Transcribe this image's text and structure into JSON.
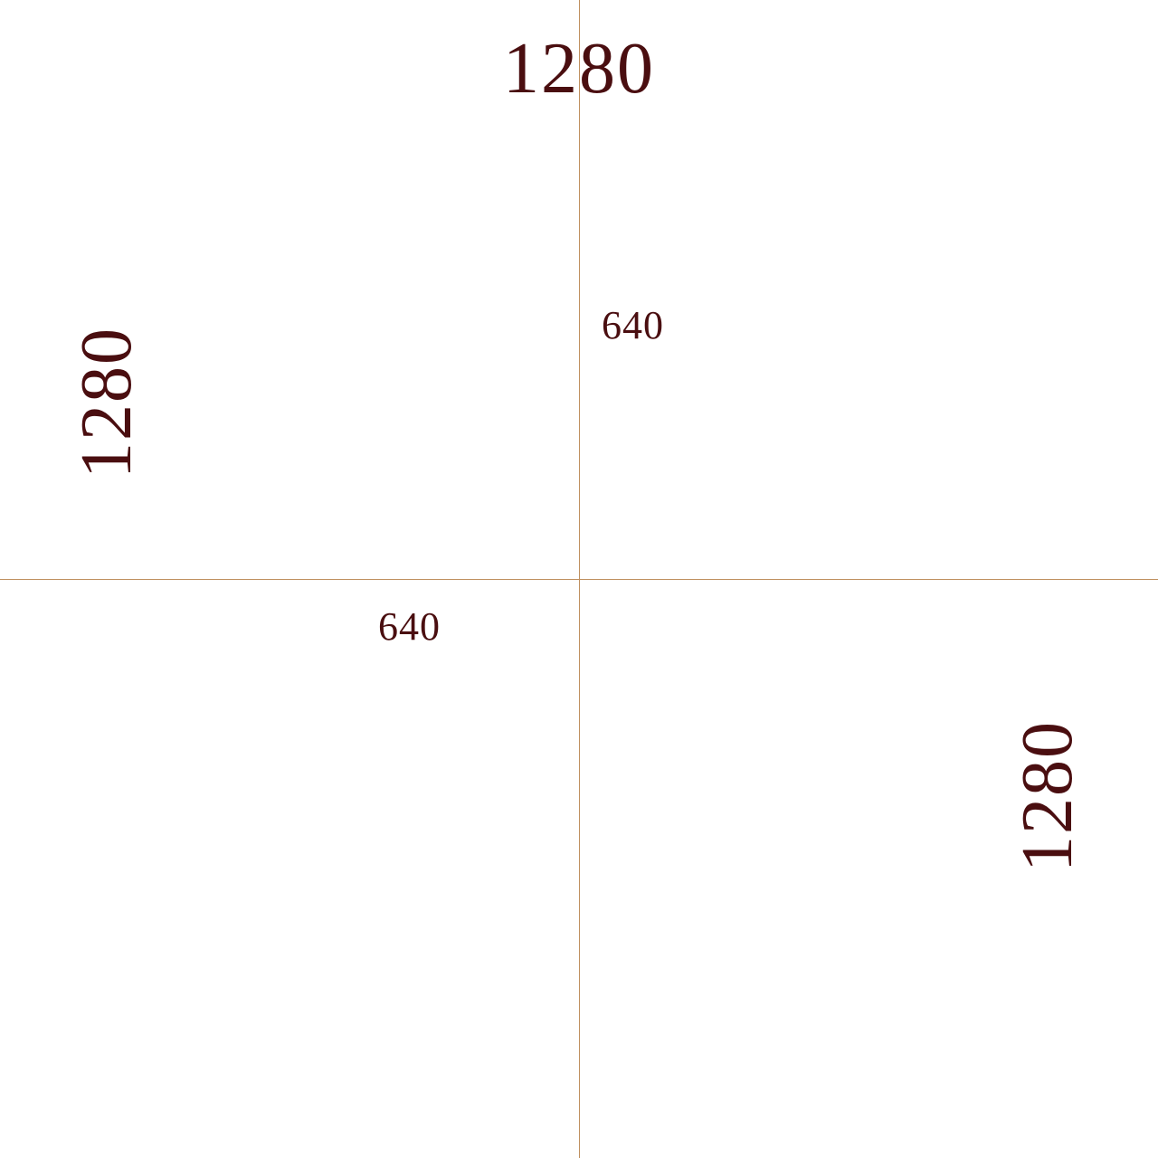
{
  "dimensions": {
    "top_width_label": "1280",
    "left_height_label": "1280",
    "right_height_label": "1280",
    "upper_half_label": "640",
    "lower_half_label": "640"
  },
  "colors": {
    "text": "#4a0e10",
    "guide_line": "#c09060",
    "background": "#ffffff"
  }
}
